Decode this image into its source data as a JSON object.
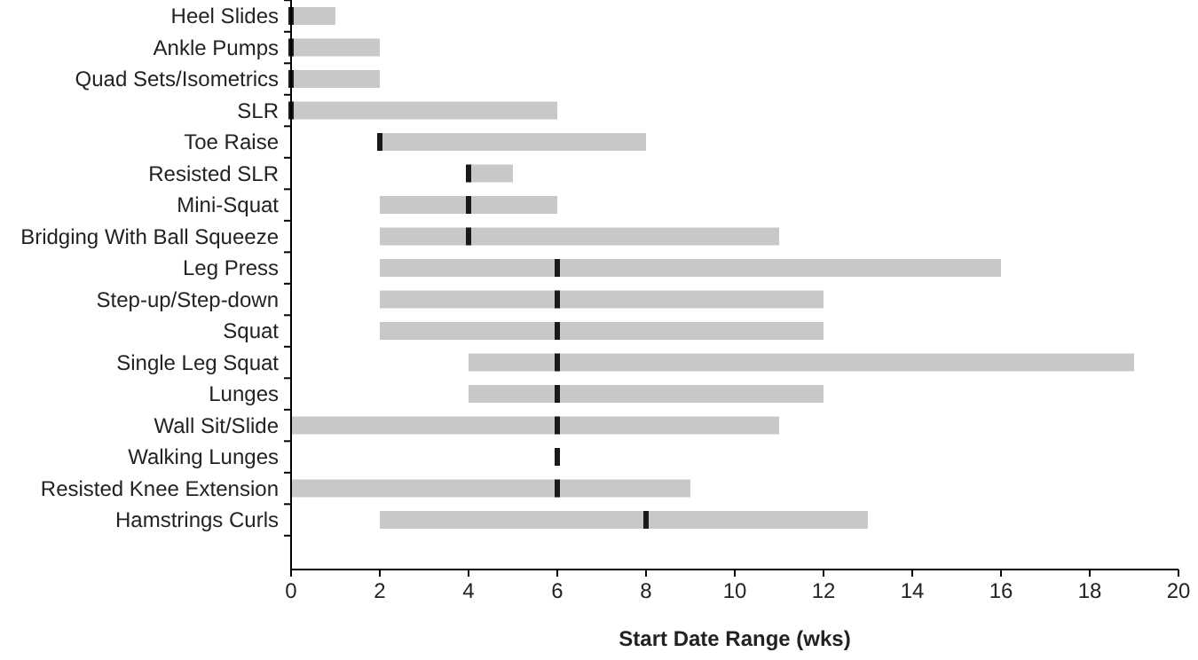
{
  "chart_data": {
    "type": "bar",
    "orientation": "horizontal",
    "xlabel": "Start Date Range (wks)",
    "categories": [
      "Heel Slides",
      "Ankle Pumps",
      "Quad Sets/Isometrics",
      "SLR",
      "Toe Raise",
      "Resisted SLR",
      "Mini-Squat",
      "Bridging With Ball Squeeze",
      "Leg Press",
      "Step-up/Step-down",
      "Squat",
      "Single Leg Squat",
      "Lunges",
      "Wall Sit/Slide",
      "Walking Lunges",
      "Resisted Knee Extension",
      "Hamstrings Curls"
    ],
    "xlim": [
      0,
      20
    ],
    "xticks": [
      0,
      2,
      4,
      6,
      8,
      10,
      12,
      14,
      16,
      18,
      20
    ],
    "grid": false,
    "series": [
      {
        "type": "bar",
        "color": "#c8c8c8",
        "base": [
          0,
          0,
          0,
          0,
          2,
          4,
          2,
          2,
          2,
          2,
          2,
          4,
          4,
          0,
          null,
          0,
          2
        ],
        "values": [
          1,
          2,
          2,
          6,
          6,
          1,
          4,
          9,
          14,
          10,
          10,
          15,
          8,
          11,
          null,
          9,
          11
        ]
      },
      {
        "type": "scatter",
        "color": "#1a1a1a",
        "x": [
          "Heel Slides",
          "Ankle Pumps",
          "Quad Sets/Isometrics",
          "SLR",
          "Toe Raise",
          "Resisted SLR",
          "Mini-Squat",
          "Bridging With Ball Squeeze",
          "Leg Press",
          "Step-up/Step-down",
          "Squat",
          "Single Leg Squat",
          "Lunges",
          "Wall Sit/Slide",
          "Walking Lunges",
          "Resisted Knee Extension",
          "Hamstrings Curls"
        ],
        "values": [
          0,
          0,
          0,
          0,
          2,
          4,
          4,
          4,
          6,
          6,
          6,
          6,
          6,
          6,
          6,
          6,
          8
        ]
      }
    ]
  }
}
